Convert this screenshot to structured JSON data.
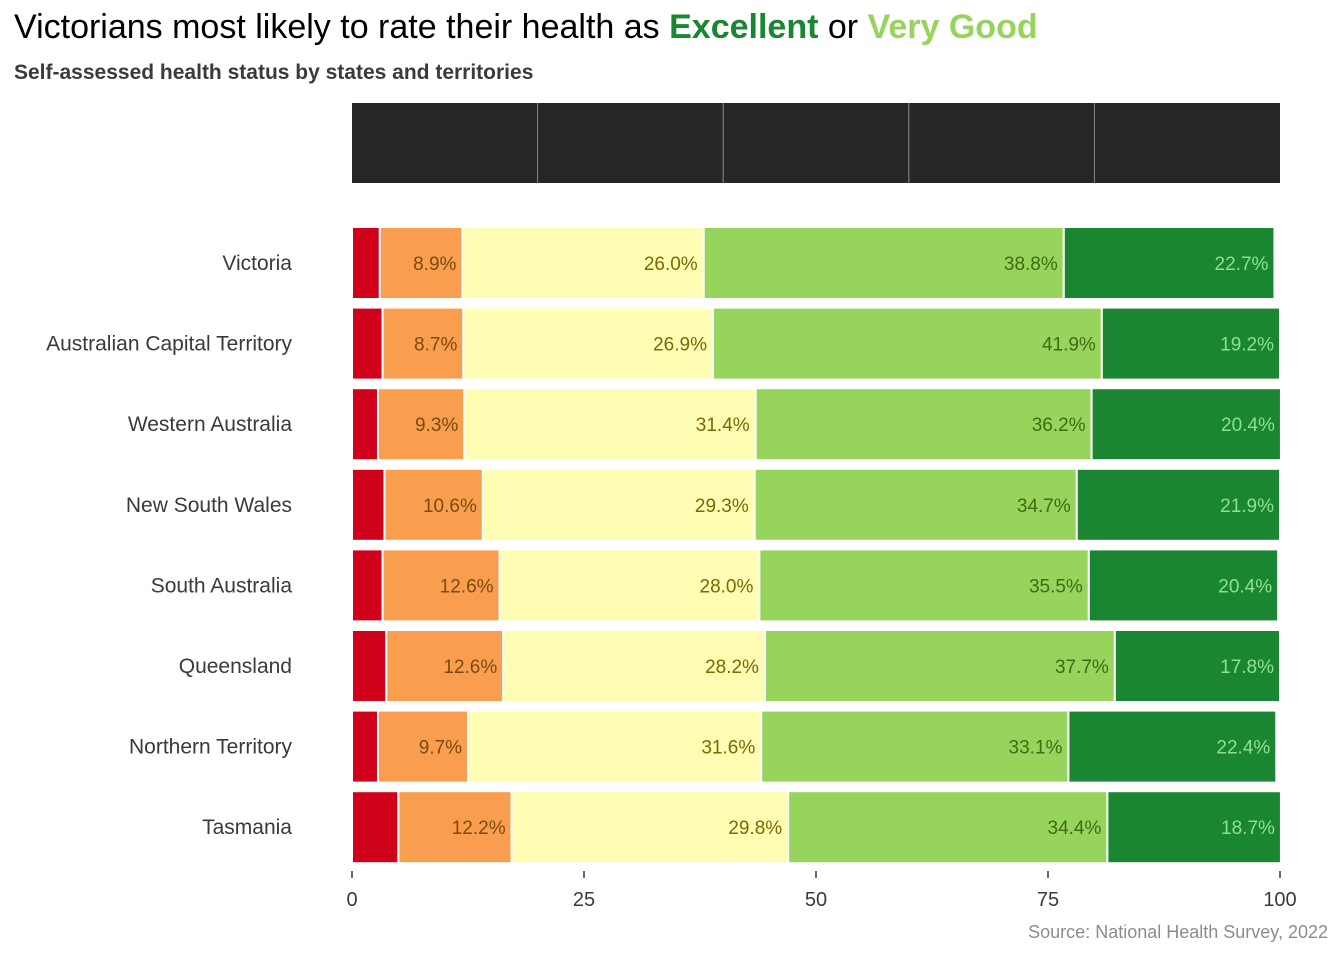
{
  "title": {
    "prefix": "Victorians most likely to rate their health as ",
    "excellent": "Excellent",
    "connector": " or ",
    "very_good": "Very Good"
  },
  "subtitle": "Self-assessed health status by states and territories",
  "source": "Source: National Health Survey, 2022",
  "colors": {
    "poor": "#d0021b",
    "fair": "#f99e4f",
    "good": "#fefdb3",
    "very_good": "#97d45b",
    "excellent": "#1a8631",
    "legend_bar": "#262626",
    "label_dark": "#7a6a00",
    "label_excellent": "#8fe08f"
  },
  "chart_data": {
    "type": "bar",
    "orientation": "horizontal",
    "stacked": true,
    "xlim": [
      0,
      100
    ],
    "xticks": [
      0,
      25,
      50,
      75,
      100
    ],
    "xlabel": "",
    "ylabel": "",
    "categories": [
      "Victoria",
      "Australian Capital Territory",
      "Western Australia",
      "New South Wales",
      "South Australia",
      "Queensland",
      "Northern Territory",
      "Tasmania"
    ],
    "series": [
      {
        "key": "poor",
        "values": [
          3.0,
          3.3,
          2.8,
          3.5,
          3.3,
          3.7,
          2.8,
          5.0
        ],
        "labels": [
          "",
          "",
          "",
          "",
          "",
          "",
          "",
          ""
        ]
      },
      {
        "key": "fair",
        "values": [
          8.9,
          8.7,
          9.3,
          10.6,
          12.6,
          12.6,
          9.7,
          12.2
        ],
        "labels": [
          "8.9%",
          "8.7%",
          "9.3%",
          "10.6%",
          "12.6%",
          "12.6%",
          "9.7%",
          "12.2%"
        ]
      },
      {
        "key": "good",
        "values": [
          26.0,
          26.9,
          31.4,
          29.3,
          28.0,
          28.2,
          31.6,
          29.8
        ],
        "labels": [
          "26.0%",
          "26.9%",
          "31.4%",
          "29.3%",
          "28.0%",
          "28.2%",
          "31.6%",
          "29.8%"
        ]
      },
      {
        "key": "very_good",
        "values": [
          38.8,
          41.9,
          36.2,
          34.7,
          35.5,
          37.7,
          33.1,
          34.4
        ],
        "labels": [
          "38.8%",
          "41.9%",
          "36.2%",
          "34.7%",
          "35.5%",
          "37.7%",
          "33.1%",
          "34.4%"
        ]
      },
      {
        "key": "excellent",
        "values": [
          22.7,
          19.2,
          20.4,
          21.9,
          20.4,
          17.8,
          22.4,
          18.7
        ],
        "labels": [
          "22.7%",
          "19.2%",
          "20.4%",
          "21.9%",
          "20.4%",
          "17.8%",
          "22.4%",
          "18.7%"
        ]
      }
    ],
    "legend": {
      "placement": "top",
      "segments": 5
    }
  }
}
